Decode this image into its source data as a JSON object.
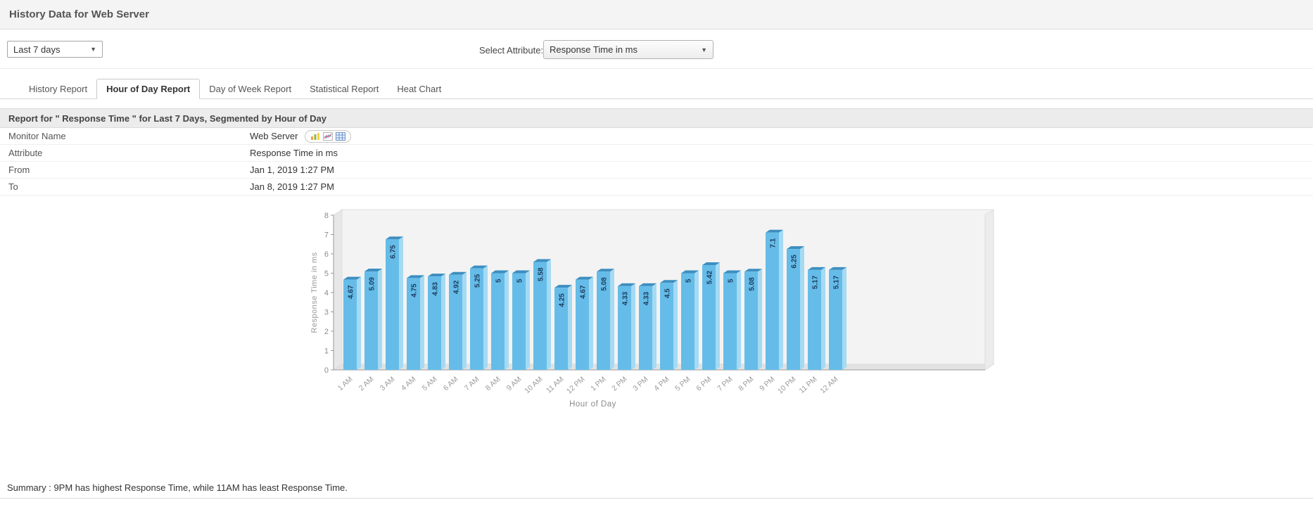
{
  "header": {
    "title": "History Data for Web Server"
  },
  "toolbar": {
    "period_select": {
      "value": "Last 7 days"
    },
    "attribute_label": "Select Attribute:",
    "attribute_select": {
      "value": "Response Time in ms"
    }
  },
  "tabs": [
    {
      "label": "History Report",
      "active": false
    },
    {
      "label": "Hour of Day Report",
      "active": true
    },
    {
      "label": "Day of Week Report",
      "active": false
    },
    {
      "label": "Statistical Report",
      "active": false
    },
    {
      "label": "Heat Chart",
      "active": false
    }
  ],
  "report": {
    "title": "Report for \" Response Time \" for Last 7 Days, Segmented by Hour of Day",
    "rows": [
      {
        "label": "Monitor Name",
        "value": "Web Server",
        "icons": [
          "bar-chart-icon",
          "line-chart-icon",
          "table-icon"
        ]
      },
      {
        "label": "Attribute",
        "value": "Response Time in ms"
      },
      {
        "label": "From",
        "value": "Jan 1, 2019 1:27 PM"
      },
      {
        "label": "To",
        "value": "Jan 8, 2019 1:27 PM"
      }
    ]
  },
  "chart_data": {
    "type": "bar",
    "title": "",
    "xlabel": "Hour of Day",
    "ylabel": "Response Time in ms",
    "ylim": [
      0,
      8
    ],
    "y_ticks": [
      0,
      1,
      2,
      3,
      4,
      5,
      6,
      7,
      8
    ],
    "grid": false,
    "legend": "none",
    "categories": [
      "1 AM",
      "2 AM",
      "3 AM",
      "4 AM",
      "5 AM",
      "6 AM",
      "7 AM",
      "8 AM",
      "9 AM",
      "10 AM",
      "11 AM",
      "12 PM",
      "1 PM",
      "2 PM",
      "3 PM",
      "4 PM",
      "5 PM",
      "6 PM",
      "7 PM",
      "8 PM",
      "9 PM",
      "10 PM",
      "11 PM",
      "12 AM"
    ],
    "values": [
      4.67,
      5.09,
      6.75,
      4.75,
      4.83,
      4.92,
      5.25,
      5,
      5,
      5.58,
      4.25,
      4.67,
      5.08,
      4.33,
      4.33,
      4.5,
      5,
      5.42,
      5,
      5.08,
      7.1,
      6.25,
      5.17,
      5.17
    ],
    "bar_color": "#66bce8",
    "bar_side_color": "#a5daf3",
    "bar_top_color": "#3d8ec0",
    "label_color": "#1b3c5d"
  },
  "summary": "Summary : 9PM has highest Response Time, while 11AM has least Response Time."
}
